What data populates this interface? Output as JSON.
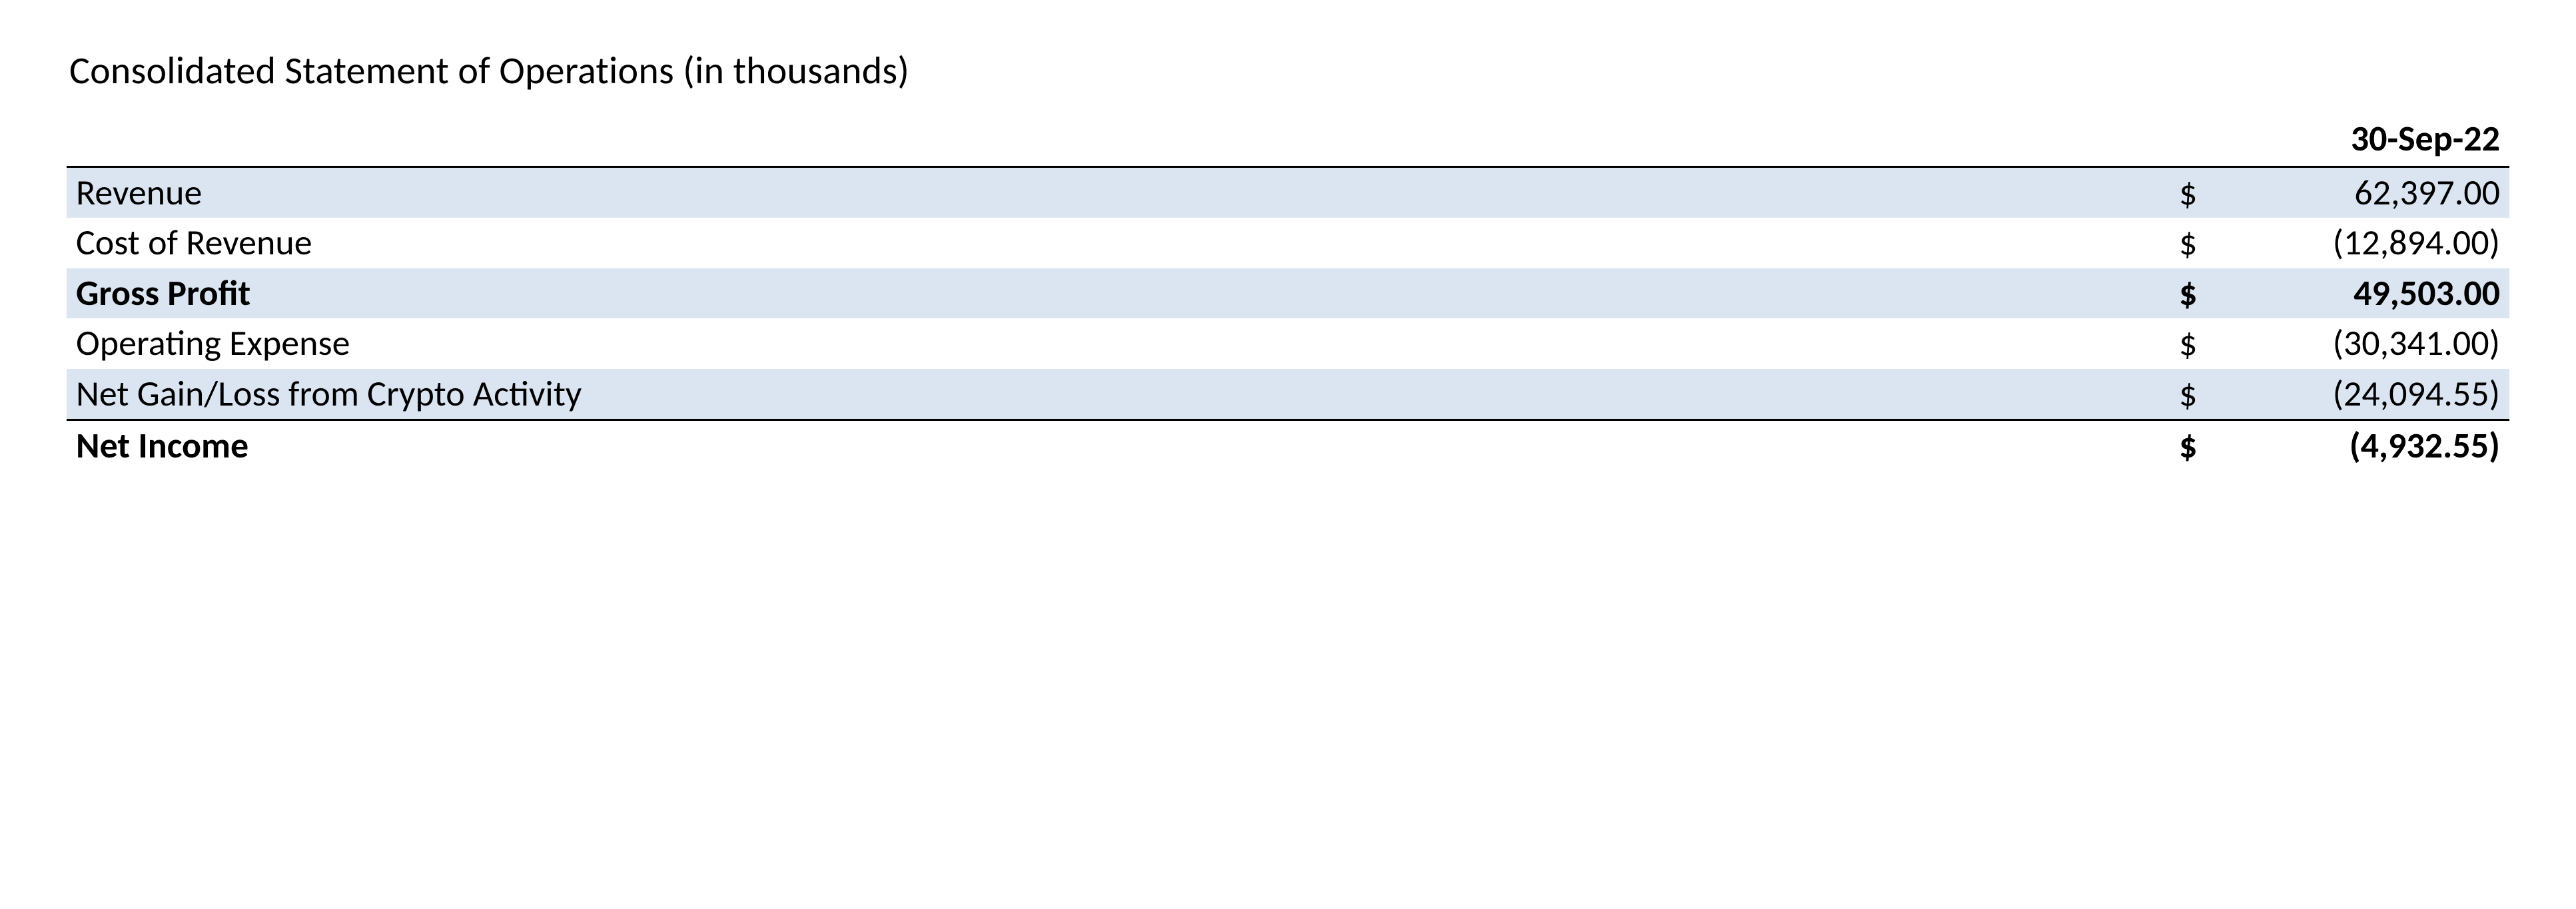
{
  "title": "Consolidated Statement of Operations (in thousands)",
  "periodHeader": "30-Sep-22",
  "currencySymbol": "$",
  "table": {
    "colors": {
      "shadedRow": "#dbe5f1",
      "border": "#000000",
      "text": "#000000",
      "background": "#ffffff"
    },
    "fontSizePx": 54,
    "rows": [
      {
        "label": "Revenue",
        "amount": "62,397.00",
        "shaded": true,
        "bold": false,
        "totalTop": false
      },
      {
        "label": "Cost of Revenue",
        "amount": "(12,894.00)",
        "shaded": false,
        "bold": false,
        "totalTop": false
      },
      {
        "label": "Gross Profit",
        "amount": "49,503.00",
        "shaded": true,
        "bold": true,
        "totalTop": false
      },
      {
        "label": "Operating Expense",
        "amount": "(30,341.00)",
        "shaded": false,
        "bold": false,
        "totalTop": false
      },
      {
        "label": "Net Gain/Loss from Crypto Activity",
        "amount": "(24,094.55)",
        "shaded": true,
        "bold": false,
        "totalTop": false
      },
      {
        "label": "Net Income",
        "amount": "(4,932.55)",
        "shaded": false,
        "bold": true,
        "totalTop": true
      }
    ]
  }
}
